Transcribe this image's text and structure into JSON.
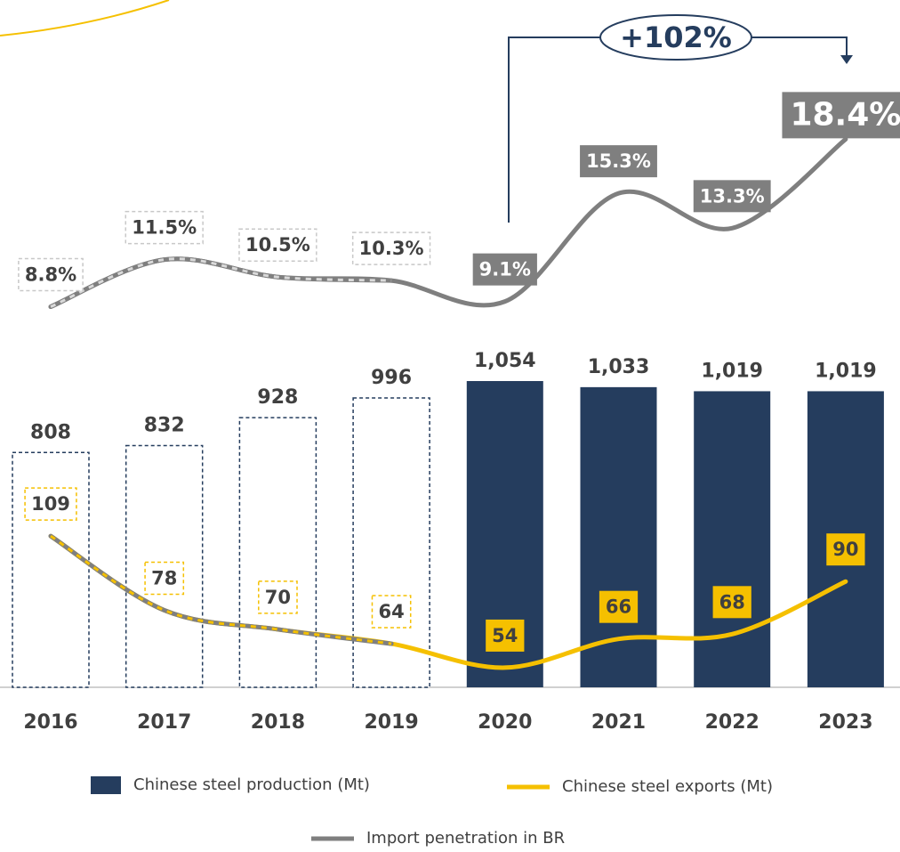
{
  "chart_data": {
    "type": "combo",
    "categories": [
      "2016",
      "2017",
      "2018",
      "2019",
      "2020",
      "2021",
      "2022",
      "2023"
    ],
    "annotation": "+102%",
    "ylim": [
      0,
      1100
    ],
    "y2lim": [
      0,
      150
    ],
    "y3lim": [
      0,
      20
    ],
    "series": [
      {
        "name": "Chinese steel production (Mt)",
        "type": "bar",
        "color": "#253d5e",
        "axis": "y",
        "values": [
          808,
          832,
          928,
          996,
          1054,
          1033,
          1019,
          1019
        ],
        "value_labels": [
          "808",
          "832",
          "928",
          "996",
          "1,054",
          "1,033",
          "1,019",
          "1,019"
        ]
      },
      {
        "name": "Chinese steel exports (Mt)",
        "type": "line",
        "color": "#f5c000",
        "axis": "y2",
        "values": [
          109,
          78,
          70,
          64,
          54,
          66,
          68,
          90
        ]
      },
      {
        "name": "Import penetration in BR",
        "type": "line",
        "color": "#7f7f7f",
        "axis": "y3",
        "values": [
          8.8,
          11.5,
          10.5,
          10.3,
          9.1,
          15.3,
          13.3,
          18.4
        ],
        "value_labels": [
          "8.8%",
          "11.5%",
          "10.5%",
          "10.3%",
          "9.1%",
          "15.3%",
          "13.3%",
          "18.4%"
        ]
      }
    ]
  }
}
